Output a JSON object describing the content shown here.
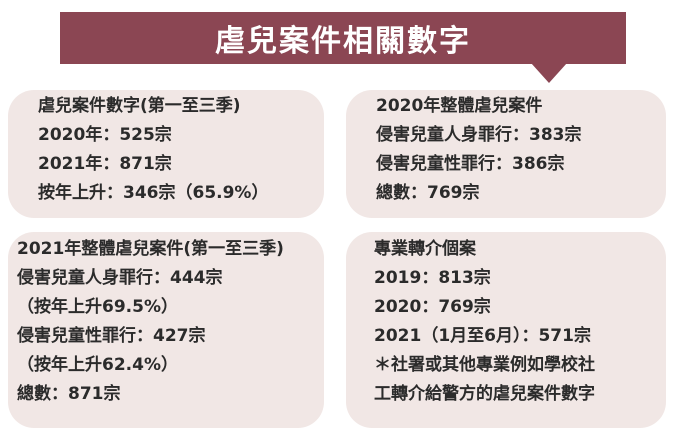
{
  "banner": {
    "title": "虐兒案件相關數字"
  },
  "cards": {
    "top_left": [
      "虐兒案件數字(第一至三季)",
      "2020年：525宗",
      "2021年：871宗",
      "按年上升：346宗（65.9%）"
    ],
    "top_right": [
      "2020年整體虐兒案件",
      "侵害兒童人身罪行：383宗",
      "侵害兒童性罪行：386宗",
      "總數：769宗"
    ],
    "bottom_left": [
      "2021年整體虐兒案件(第一至三季)",
      "侵害兒童人身罪行：444宗",
      "（按年上升69.5%）",
      "侵害兒童性罪行：427宗",
      "（按年上升62.4%）",
      "總數：871宗"
    ],
    "bottom_right": [
      "專業轉介個案",
      "2019：813宗",
      "2020：769宗",
      "2021（1月至6月）：571宗",
      "＊社署或其他專業例如學校社",
      "工轉介給警方的虐兒案件數字"
    ]
  }
}
